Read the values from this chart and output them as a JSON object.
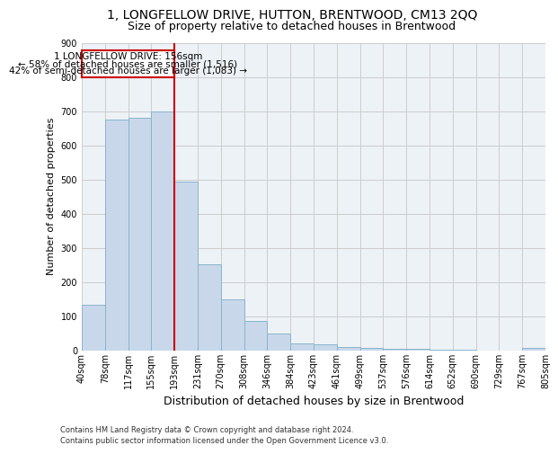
{
  "title": "1, LONGFELLOW DRIVE, HUTTON, BRENTWOOD, CM13 2QQ",
  "subtitle": "Size of property relative to detached houses in Brentwood",
  "xlabel": "Distribution of detached houses by size in Brentwood",
  "ylabel": "Number of detached properties",
  "bar_values": [
    135,
    675,
    680,
    700,
    493,
    252,
    150,
    88,
    50,
    22,
    18,
    10,
    8,
    5,
    5,
    2,
    2,
    1,
    1,
    8
  ],
  "bar_labels": [
    "40sqm",
    "78sqm",
    "117sqm",
    "155sqm",
    "193sqm",
    "231sqm",
    "270sqm",
    "308sqm",
    "346sqm",
    "384sqm",
    "423sqm",
    "461sqm",
    "499sqm",
    "537sqm",
    "576sqm",
    "614sqm",
    "652sqm",
    "690sqm",
    "729sqm",
    "767sqm",
    "805sqm"
  ],
  "bar_color": "#c8d8ea",
  "bar_edge_color": "#89b4cc",
  "grid_color": "#cccccc",
  "bg_color": "#edf2f7",
  "annotation_box_color": "#cc0000",
  "annotation_line1": "1 LONGFELLOW DRIVE: 156sqm",
  "annotation_line2": "← 58% of detached houses are smaller (1,516)",
  "annotation_line3": "42% of semi-detached houses are larger (1,083) →",
  "vline_color": "#cc0000",
  "ylim": [
    0,
    900
  ],
  "yticks": [
    0,
    100,
    200,
    300,
    400,
    500,
    600,
    700,
    800,
    900
  ],
  "footer": "Contains HM Land Registry data © Crown copyright and database right 2024.\nContains public sector information licensed under the Open Government Licence v3.0.",
  "title_fontsize": 10,
  "subtitle_fontsize": 9,
  "xlabel_fontsize": 9,
  "ylabel_fontsize": 8,
  "tick_fontsize": 7
}
